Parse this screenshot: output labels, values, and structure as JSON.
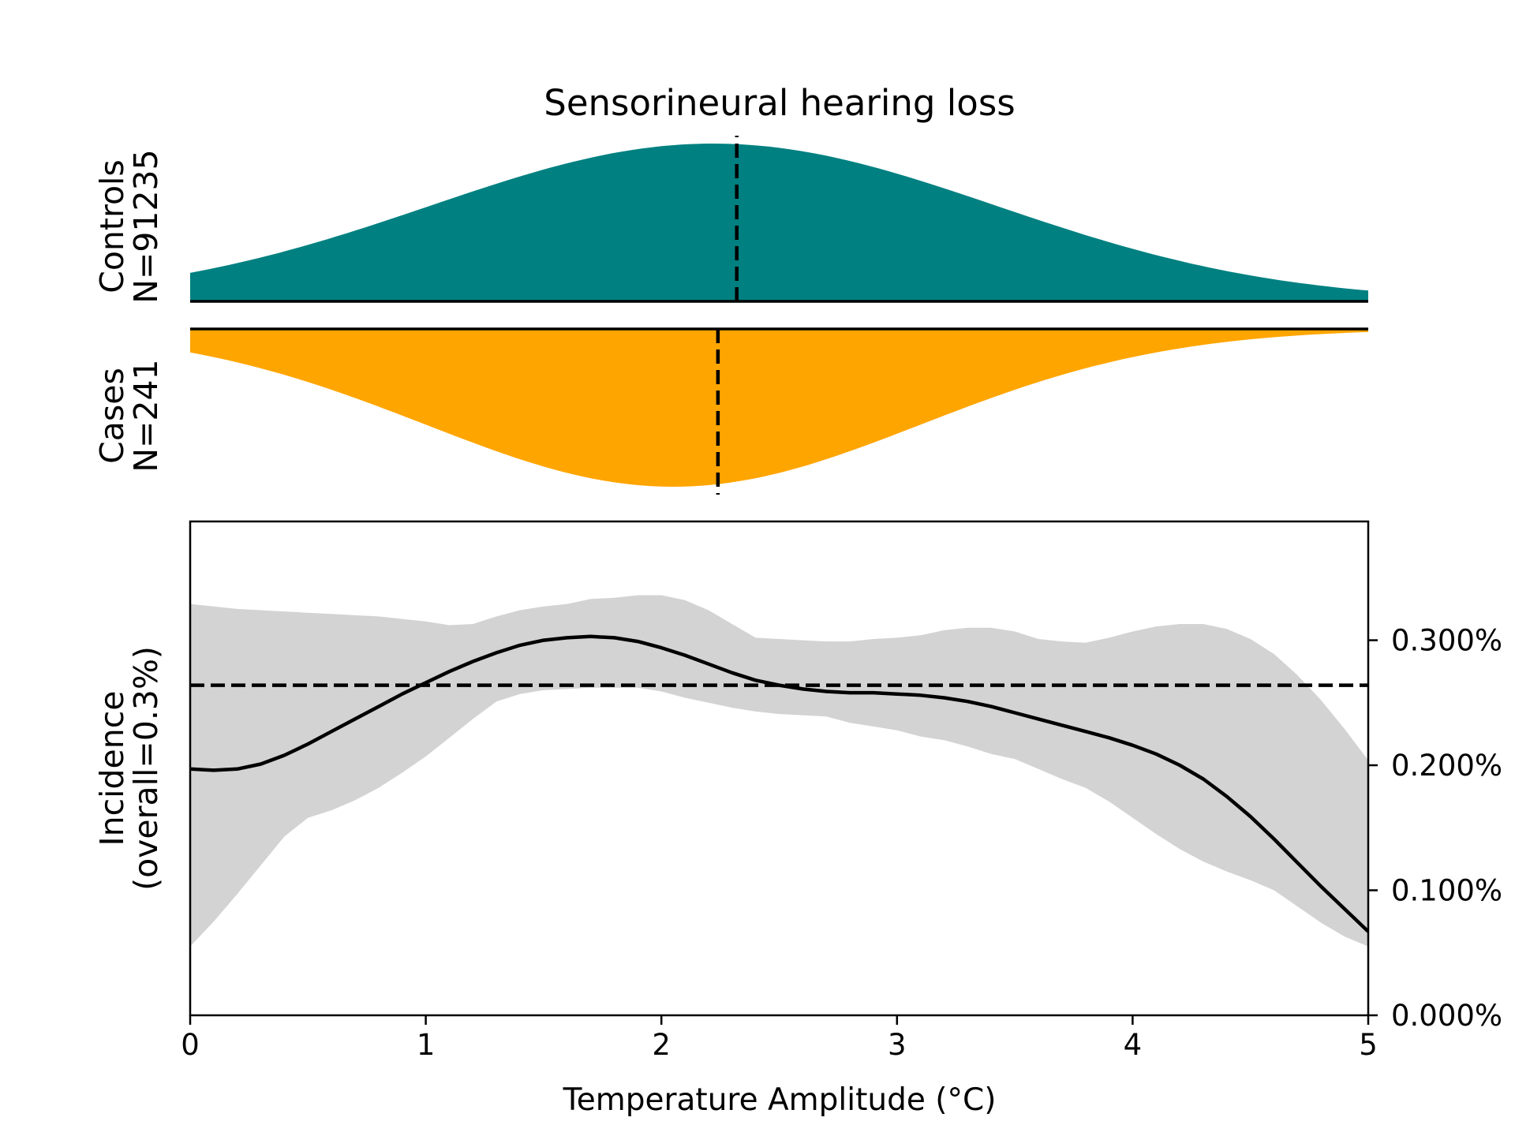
{
  "chart_data": {
    "type": "area",
    "title": "Sensorineural hearing loss",
    "xlabel": "Temperature Amplitude (°C)",
    "xlim": [
      0,
      5
    ],
    "ylim": [
      0,
      0.00395
    ],
    "x_ticks": [
      0,
      1,
      2,
      3,
      4,
      5
    ],
    "x_tick_labels": [
      "0",
      "1",
      "2",
      "3",
      "4",
      "5"
    ],
    "y_ticks": [
      0,
      0.001,
      0.002,
      0.003
    ],
    "y_tick_labels": [
      "0.000%",
      "0.100%",
      "0.200%",
      "0.300%"
    ],
    "y_axis_side": "right",
    "grid": false,
    "controls": {
      "label_lines": [
        "Controls",
        "N=91235"
      ],
      "color": "#008080",
      "median": 2.32,
      "density_mean": 2.22,
      "density_sd": 1.2
    },
    "cases": {
      "label_lines": [
        "Cases",
        "N=241"
      ],
      "color": "#ffa500",
      "median": 2.24,
      "density_mean": 2.05,
      "density_sd": 1.05
    },
    "incidence": {
      "label_lines": [
        "Incidence",
        "(overall=0.3%)"
      ],
      "overall": 0.00264,
      "line_color": "#000000",
      "band_color": "#d3d3d3",
      "x": [
        0,
        0.1,
        0.2,
        0.3,
        0.4,
        0.5,
        0.6,
        0.7,
        0.8,
        0.9,
        1.0,
        1.1,
        1.2,
        1.3,
        1.4,
        1.5,
        1.6,
        1.7,
        1.8,
        1.9,
        2.0,
        2.1,
        2.2,
        2.3,
        2.4,
        2.5,
        2.6,
        2.7,
        2.8,
        2.9,
        3.0,
        3.1,
        3.2,
        3.3,
        3.4,
        3.5,
        3.6,
        3.7,
        3.8,
        3.9,
        4.0,
        4.1,
        4.2,
        4.3,
        4.4,
        4.5,
        4.6,
        4.7,
        4.8,
        4.9,
        5.0
      ],
      "mean": [
        0.00197,
        0.00196,
        0.00197,
        0.00201,
        0.00208,
        0.00217,
        0.00227,
        0.00237,
        0.00247,
        0.00257,
        0.00266,
        0.00275,
        0.00283,
        0.0029,
        0.00296,
        0.003,
        0.00302,
        0.00303,
        0.00302,
        0.00299,
        0.00294,
        0.00288,
        0.00281,
        0.00274,
        0.00268,
        0.00264,
        0.00261,
        0.00259,
        0.00258,
        0.00258,
        0.00257,
        0.00256,
        0.00254,
        0.00251,
        0.00247,
        0.00242,
        0.00237,
        0.00232,
        0.00227,
        0.00222,
        0.00216,
        0.00209,
        0.002,
        0.00189,
        0.00175,
        0.00159,
        0.00141,
        0.00122,
        0.00103,
        0.00085,
        0.00067
      ],
      "lower": [
        0.00055,
        0.00075,
        0.00097,
        0.0012,
        0.00143,
        0.00158,
        0.00164,
        0.00172,
        0.00182,
        0.00194,
        0.00207,
        0.00222,
        0.00237,
        0.00251,
        0.00257,
        0.0026,
        0.00261,
        0.00262,
        0.00262,
        0.00262,
        0.00259,
        0.00254,
        0.0025,
        0.00246,
        0.00243,
        0.00241,
        0.0024,
        0.00239,
        0.00234,
        0.00231,
        0.00228,
        0.00223,
        0.0022,
        0.00215,
        0.00209,
        0.00205,
        0.00197,
        0.00189,
        0.00182,
        0.00171,
        0.00158,
        0.00145,
        0.00133,
        0.00123,
        0.00115,
        0.00108,
        0.001,
        0.00087,
        0.00074,
        0.00063,
        0.00055
      ],
      "upper": [
        0.00329,
        0.00327,
        0.00325,
        0.00324,
        0.00323,
        0.00322,
        0.00321,
        0.0032,
        0.00319,
        0.00317,
        0.00315,
        0.00312,
        0.00313,
        0.00319,
        0.00324,
        0.00327,
        0.00329,
        0.00333,
        0.00334,
        0.00336,
        0.00336,
        0.00332,
        0.00324,
        0.00313,
        0.00302,
        0.00301,
        0.003,
        0.00299,
        0.00299,
        0.00301,
        0.00302,
        0.00304,
        0.00308,
        0.0031,
        0.0031,
        0.00307,
        0.00301,
        0.00299,
        0.00298,
        0.00302,
        0.00307,
        0.00311,
        0.00313,
        0.00313,
        0.00309,
        0.00301,
        0.00289,
        0.00272,
        0.00252,
        0.00229,
        0.00204
      ]
    }
  }
}
